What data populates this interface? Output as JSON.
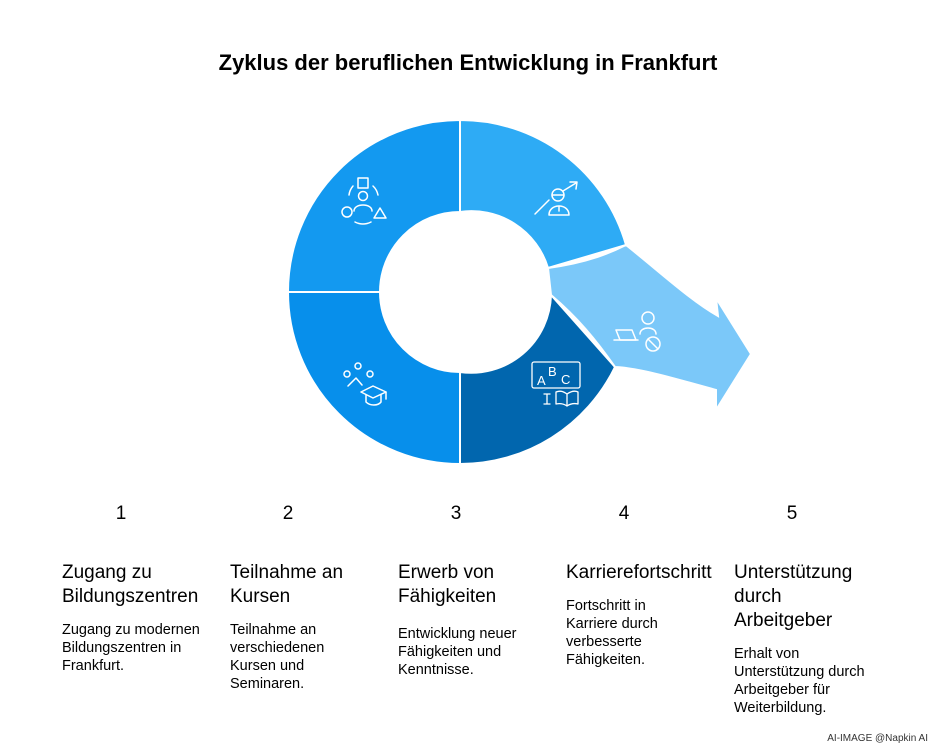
{
  "title": "Zyklus der beruflichen Entwicklung in Frankfurt",
  "colors": {
    "segment_1": "#1399F0",
    "segment_2": "#078FEB",
    "segment_3": "#0166AE",
    "segment_4": "#2EABF5",
    "segment_5": "#7BC8F9",
    "icon_stroke": "#ffffff"
  },
  "segments": [
    {
      "number": "1",
      "icon": "people-shapes-icon"
    },
    {
      "number": "2",
      "icon": "graduation-cap-icon"
    },
    {
      "number": "3",
      "icon": "abc-book-icon"
    },
    {
      "number": "4",
      "icon": "career-growth-icon"
    },
    {
      "number": "5",
      "icon": "support-person-icon"
    }
  ],
  "steps": [
    {
      "number": "1",
      "title": "Zugang zu Bildungszentren",
      "description": "Zugang zu modernen Bildungszentren in Frankfurt."
    },
    {
      "number": "2",
      "title": "Teilnahme an Kursen",
      "description": "Teilnahme an verschiedenen Kursen und Seminaren."
    },
    {
      "number": "3",
      "title": "Erwerb von Fähigkeiten",
      "description": "Entwicklung neuer Fähigkeiten und Kenntnisse."
    },
    {
      "number": "4",
      "title": "Karrierefortschritt",
      "description": "Fortschritt in Karriere durch verbesserte Fähigkeiten."
    },
    {
      "number": "5",
      "title": "Unterstützung durch Arbeitgeber",
      "description": "Erhalt von Unterstützung durch Arbeitgeber für Weiterbildung."
    }
  ],
  "credit": "AI-IMAGE  @Napkin AI"
}
